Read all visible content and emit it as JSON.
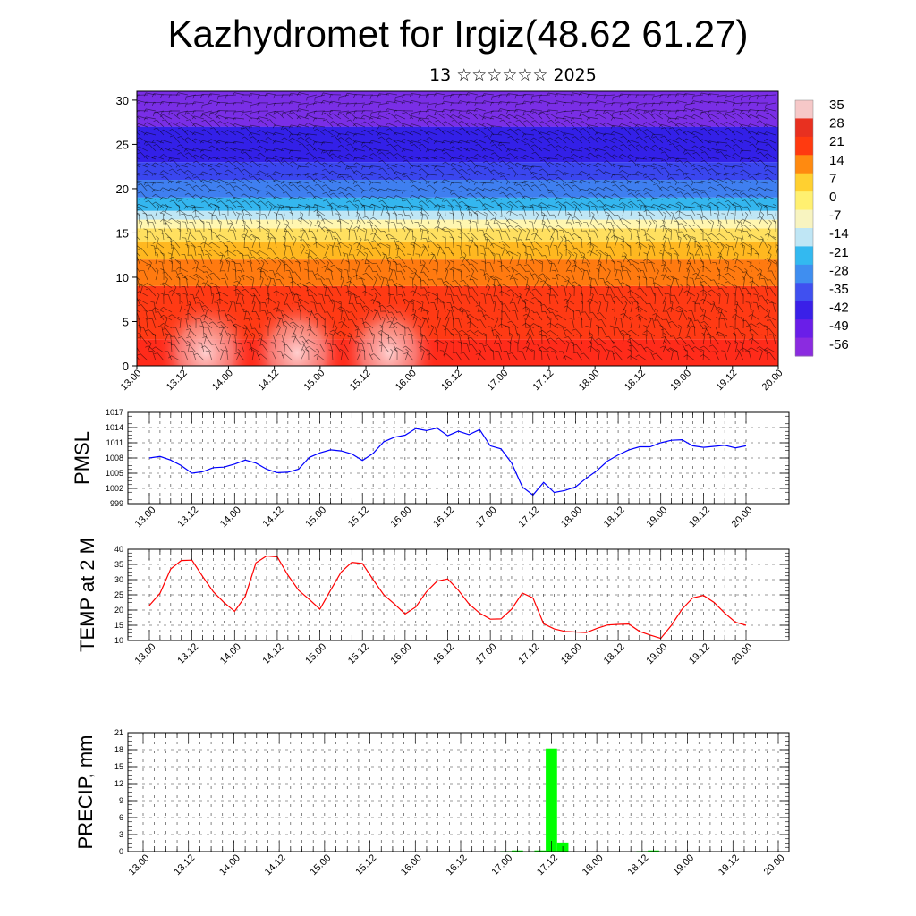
{
  "header": {
    "title": "Kazhydromet for Irgiz(48.62 61.27)",
    "subtitle": "13 ☆☆☆☆☆☆ 2025"
  },
  "time_labels": [
    "13.00",
    "13.12",
    "14.00",
    "14.12",
    "15.00",
    "15.12",
    "16.00",
    "16.12",
    "17.00",
    "17.12",
    "18.00",
    "18.12",
    "19.00",
    "19.12",
    "20.00"
  ],
  "chart_data": [
    {
      "type": "heatmap",
      "title": "",
      "xlabel": "",
      "ylabel": "",
      "ylim": [
        0,
        31
      ],
      "y_ticks": [
        "0",
        "5",
        "10",
        "15",
        "20",
        "25",
        "30"
      ],
      "colorbar": {
        "labels": [
          "35",
          "28",
          "21",
          "14",
          "7",
          "0",
          "-7",
          "-14",
          "-21",
          "-28",
          "-35",
          "-42",
          "-49",
          "-56"
        ],
        "colors": [
          "#f6c8c8",
          "#e83020",
          "#ff3a10",
          "#ff8a10",
          "#ffd030",
          "#fff070",
          "#f8f4c0",
          "#bfe6f5",
          "#33b9f0",
          "#3f8ef0",
          "#4050f0",
          "#3a20e8",
          "#6a1ee8",
          "#8b2be0"
        ]
      },
      "bands": [
        {
          "from": 0,
          "to": 3,
          "color": "#ff2b1a"
        },
        {
          "from": 3,
          "to": 9,
          "color": "#ff3a14"
        },
        {
          "from": 9,
          "to": 12,
          "color": "#ff7a10"
        },
        {
          "from": 12,
          "to": 14,
          "color": "#ffb820"
        },
        {
          "from": 14,
          "to": 15.5,
          "color": "#ffe060"
        },
        {
          "from": 15.5,
          "to": 16.5,
          "color": "#fff6b0"
        },
        {
          "from": 16.5,
          "to": 17.5,
          "color": "#bfe6f5"
        },
        {
          "from": 17.5,
          "to": 19,
          "color": "#34b6ef"
        },
        {
          "from": 19,
          "to": 21,
          "color": "#3f7ff0"
        },
        {
          "from": 21,
          "to": 23,
          "color": "#3a46ef"
        },
        {
          "from": 23,
          "to": 27,
          "color": "#3320e8"
        },
        {
          "from": 27,
          "to": 31,
          "color": "#7a2ee6"
        }
      ],
      "warm_spots_x": [
        1.5,
        3.5,
        5.5
      ]
    },
    {
      "type": "line",
      "ylabel": "PMSL",
      "ylim": [
        999,
        1017
      ],
      "y_ticks": [
        999,
        1002,
        1005,
        1008,
        1011,
        1014,
        1017
      ],
      "color": "#0000ff",
      "x": [
        0,
        0.25,
        0.5,
        0.75,
        1,
        1.25,
        1.5,
        1.75,
        2,
        2.25,
        2.5,
        2.75,
        3,
        3.25,
        3.5,
        3.75,
        4,
        4.25,
        4.5,
        4.75,
        5,
        5.25,
        5.5,
        5.75,
        6,
        6.25,
        6.5,
        6.75,
        7,
        7.25,
        7.5,
        7.75,
        8,
        8.25,
        8.5,
        8.75,
        9,
        9.25,
        9.5,
        9.75,
        10,
        10.25,
        10.5,
        10.75,
        11,
        11.25,
        11.5,
        11.75,
        12,
        12.25,
        12.5,
        12.75,
        13,
        13.25,
        13.5,
        13.75,
        14
      ],
      "values": [
        1008.0,
        1008.3,
        1007.6,
        1006.5,
        1005.0,
        1005.3,
        1006.1,
        1006.2,
        1006.8,
        1007.6,
        1007.0,
        1005.8,
        1005.1,
        1005.2,
        1005.8,
        1008.1,
        1009.0,
        1009.6,
        1009.4,
        1008.8,
        1007.5,
        1008.9,
        1011.2,
        1012.1,
        1012.5,
        1013.8,
        1013.4,
        1013.9,
        1012.4,
        1013.3,
        1012.6,
        1013.6,
        1010.4,
        1009.8,
        1007.0,
        1002.3,
        1000.7,
        1003.2,
        1001.2,
        1001.6,
        1002.3,
        1004.0,
        1005.5,
        1007.4,
        1008.6,
        1009.6,
        1010.2,
        1010.2,
        1011.0,
        1011.5,
        1011.6,
        1010.4,
        1010.1,
        1010.3,
        1010.5,
        1010.0,
        1010.4
      ]
    },
    {
      "type": "line",
      "ylabel": "TEMP at 2 M",
      "ylim": [
        10,
        40
      ],
      "y_ticks": [
        10,
        15,
        20,
        25,
        30,
        35,
        40
      ],
      "color": "#ff0000",
      "x": [
        0,
        0.25,
        0.5,
        0.75,
        1,
        1.25,
        1.5,
        1.75,
        2,
        2.25,
        2.5,
        2.75,
        3,
        3.25,
        3.5,
        3.75,
        4,
        4.25,
        4.5,
        4.75,
        5,
        5.25,
        5.5,
        5.75,
        6,
        6.25,
        6.5,
        6.75,
        7,
        7.25,
        7.5,
        7.75,
        8,
        8.25,
        8.5,
        8.75,
        9,
        9.25,
        9.5,
        9.75,
        10,
        10.25,
        10.5,
        10.75,
        11,
        11.25,
        11.5,
        11.75,
        12,
        12.25,
        12.5,
        12.75,
        13,
        13.25,
        13.5,
        13.75,
        14
      ],
      "values": [
        21.5,
        25.5,
        33.5,
        36.3,
        36.4,
        31.0,
        26.0,
        22.5,
        19.6,
        24.5,
        35.5,
        37.8,
        37.5,
        31.5,
        26.5,
        23.5,
        20.3,
        26.5,
        32.5,
        35.7,
        35.3,
        30.0,
        25.0,
        22.0,
        18.7,
        21.0,
        26.0,
        29.5,
        30.2,
        26.5,
        22.0,
        19.0,
        17.0,
        17.1,
        20.3,
        25.6,
        24.0,
        15.5,
        13.8,
        13.0,
        12.8,
        12.6,
        14.0,
        15.1,
        15.3,
        15.4,
        13.0,
        11.8,
        10.7,
        15.0,
        20.3,
        24.0,
        24.8,
        22.5,
        19.0,
        16.0,
        15.0
      ]
    },
    {
      "type": "bar",
      "ylabel": "PRECIP, mm",
      "ylim": [
        0,
        21
      ],
      "y_ticks": [
        0,
        3,
        6,
        9,
        12,
        15,
        18,
        21
      ],
      "color": "#00ff00",
      "x": [
        8.0,
        8.25,
        8.75,
        9.0,
        9.25,
        11.0,
        11.25
      ],
      "values": [
        0.1,
        0.2,
        0.2,
        18.2,
        1.6,
        0.1,
        0.2
      ]
    }
  ]
}
